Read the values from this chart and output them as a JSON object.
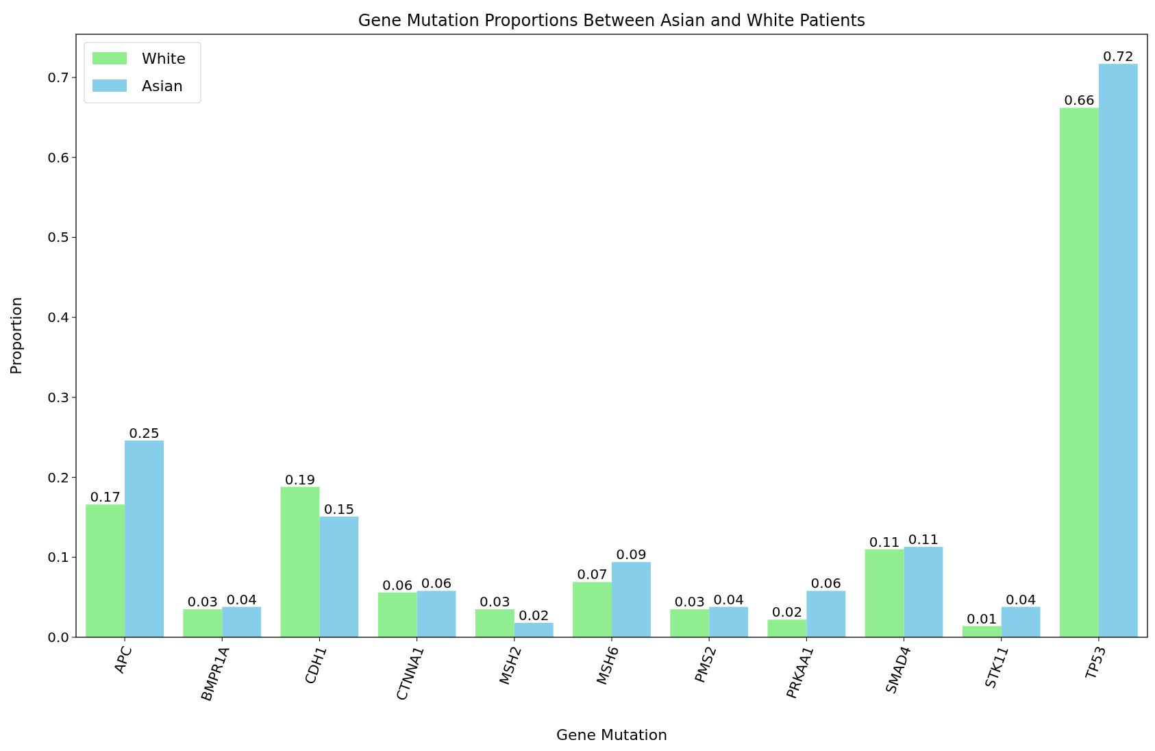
{
  "chart_data": {
    "type": "bar",
    "title": "Gene Mutation Proportions Between Asian and White Patients",
    "xlabel": "Gene Mutation",
    "ylabel": "Proportion",
    "categories": [
      "APC",
      "BMPR1A",
      "CDH1",
      "CTNNA1",
      "MSH2",
      "MSH6",
      "PMS2",
      "PRKAA1",
      "SMAD4",
      "STK11",
      "TP53"
    ],
    "series": [
      {
        "name": "White",
        "color": "#90ee90",
        "values": [
          0.166,
          0.035,
          0.188,
          0.056,
          0.035,
          0.069,
          0.035,
          0.022,
          0.11,
          0.014,
          0.662
        ],
        "value_labels": [
          "0.17",
          "0.03",
          "0.19",
          "0.06",
          "0.03",
          "0.07",
          "0.03",
          "0.02",
          "0.11",
          "0.01",
          "0.66"
        ]
      },
      {
        "name": "Asian",
        "color": "#87ceeb",
        "values": [
          0.246,
          0.038,
          0.151,
          0.058,
          0.018,
          0.094,
          0.038,
          0.058,
          0.113,
          0.038,
          0.717
        ],
        "value_labels": [
          "0.25",
          "0.04",
          "0.15",
          "0.06",
          "0.02",
          "0.09",
          "0.04",
          "0.06",
          "0.11",
          "0.04",
          "0.72"
        ]
      }
    ],
    "ylim": [
      0,
      0.754
    ],
    "yticks": [
      {
        "value": 0,
        "label": "0.0"
      },
      0.1,
      0.2,
      0.3,
      0.4,
      0.5,
      0.6,
      0.7
    ],
    "legend": "top left"
  }
}
